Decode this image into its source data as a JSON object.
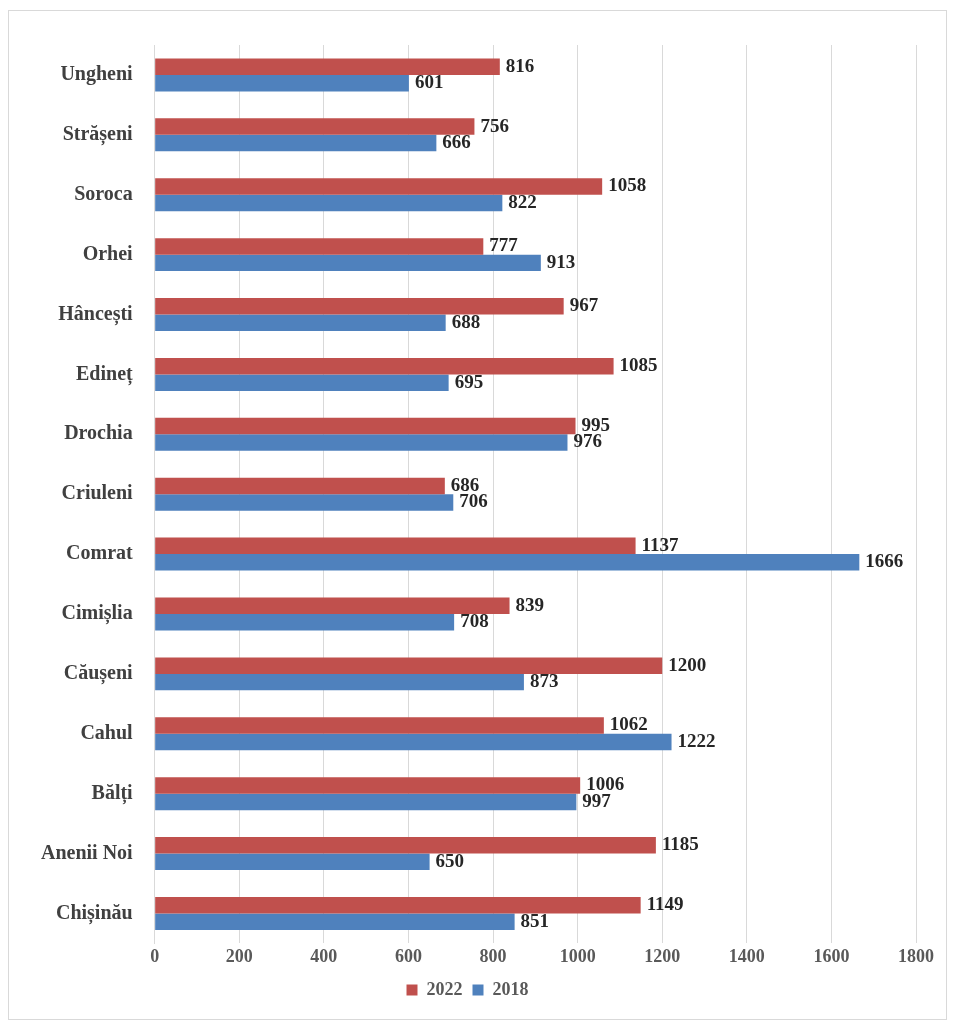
{
  "chart_data": {
    "type": "bar",
    "orientation": "horizontal",
    "categories": [
      "Ungheni",
      "Strășeni",
      "Soroca",
      "Orhei",
      "Hâncești",
      "Edineț",
      "Drochia",
      "Criuleni",
      "Comrat",
      "Cimișlia",
      "Căușeni",
      "Cahul",
      "Bălți",
      "Anenii Noi",
      "Chișinău"
    ],
    "series": [
      {
        "name": "2022",
        "color": "#c0504d",
        "values": [
          816,
          756,
          1058,
          777,
          967,
          1085,
          995,
          686,
          1137,
          839,
          1200,
          1062,
          1006,
          1185,
          1149
        ]
      },
      {
        "name": "2018",
        "color": "#4f81bd",
        "values": [
          601,
          666,
          822,
          913,
          688,
          695,
          976,
          706,
          1666,
          708,
          873,
          1222,
          997,
          650,
          851
        ]
      }
    ],
    "xlim": [
      0,
      1800
    ],
    "xticks": [
      0,
      200,
      400,
      600,
      800,
      1000,
      1200,
      1400,
      1600,
      1800
    ],
    "grid": "x",
    "legend": "bottom",
    "data_labels": true
  }
}
